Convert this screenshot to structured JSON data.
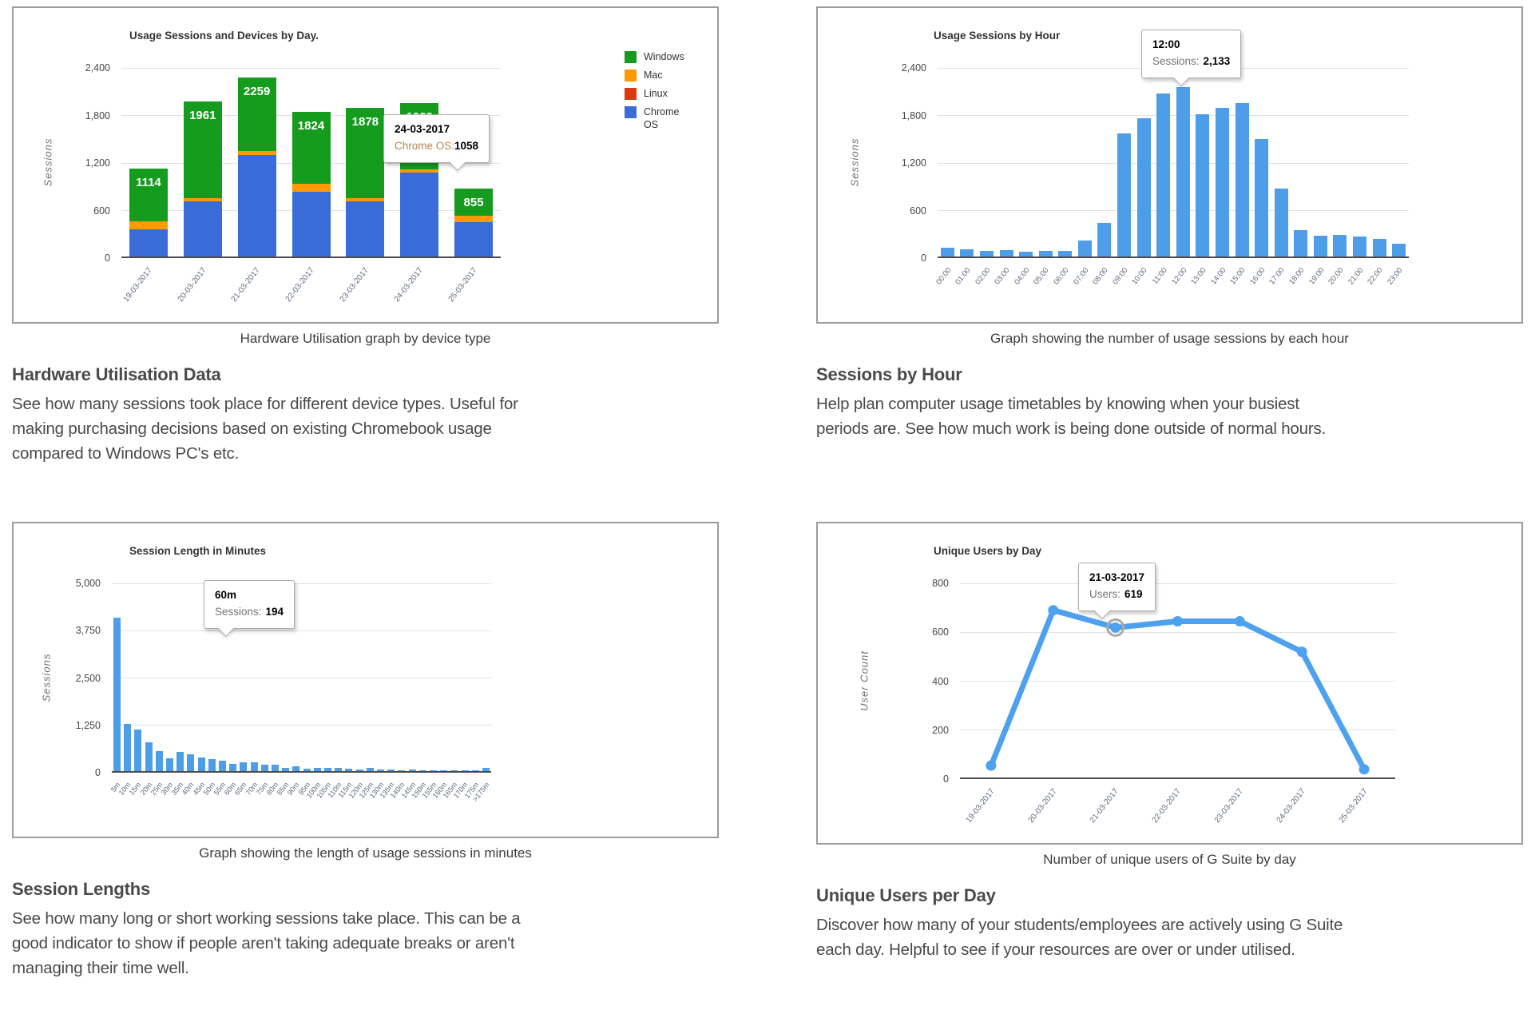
{
  "colors": {
    "windows_green": "#159b1e",
    "mac_orange": "#ff9900",
    "linux_red": "#dc3912",
    "chrome_os_blue": "#3a6cd9",
    "bar_blue": "#4d9de9",
    "line_blue": "#4da1ee",
    "box_border": "#9c9c9c",
    "text": "#4a4a4a"
  },
  "panels": {
    "hardware": {
      "caption": "Hardware Utilisation graph by device type",
      "heading": "Hardware Utilisation Data",
      "description_lines": [
        "See how many sessions took place for different device types. Useful for",
        "making purchasing decisions based on existing Chromebook usage",
        "compared to Windows PC's etc."
      ],
      "legend": [
        {
          "label": "Windows",
          "color": "#159b1e"
        },
        {
          "label": "Mac",
          "color": "#ff9900"
        },
        {
          "label": "Linux",
          "color": "#dc3912"
        },
        {
          "label": "Chrome OS",
          "color": "#3a6cd9"
        }
      ],
      "tooltip": {
        "title": "24-03-2017",
        "label": "Chrome OS:",
        "value": "1058"
      }
    },
    "hourly": {
      "caption": "Graph showing the number of usage sessions by each hour",
      "heading": "Sessions by Hour",
      "description_lines": [
        "Help plan computer usage timetables by knowing when your busiest",
        "periods are. See how much work is being done outside of normal hours."
      ],
      "tooltip": {
        "title": "12:00",
        "label": "Sessions:",
        "value": "2,133"
      }
    },
    "session_length": {
      "caption": "Graph showing the length of usage sessions in minutes",
      "heading": "Session Lengths",
      "description_lines": [
        "See how many long or short working sessions take place. This can be a",
        "good indicator to show if people aren't taking adequate breaks or aren't",
        "managing their time well."
      ],
      "tooltip": {
        "title": "60m",
        "label": "Sessions:",
        "value": "194"
      }
    },
    "unique_users": {
      "caption": "Number of unique users of G Suite by day",
      "heading": "Unique Users per Day",
      "description_lines": [
        "Discover how many of your students/employees are actively using G Suite",
        "each day. Helpful to see if your resources are over or under utilised."
      ],
      "tooltip": {
        "title": "21-03-2017",
        "label": "Users:",
        "value": "619"
      }
    }
  },
  "chart_data": [
    {
      "id": "hardware-utilisation",
      "type": "bar",
      "stacked": true,
      "title": "Usage Sessions and Devices by Day.",
      "ylabel": "Sessions",
      "ylim": [
        0,
        2400
      ],
      "yticks": [
        0,
        600,
        1200,
        1800,
        2400
      ],
      "ytick_labels": [
        "0",
        "600",
        "1,200",
        "1,800",
        "2,400"
      ],
      "grid": true,
      "legend_position": "right",
      "categories": [
        "19-03-2017",
        "20-03-2017",
        "21-03-2017",
        "22-03-2017",
        "23-03-2017",
        "24-03-2017",
        "25-03-2017"
      ],
      "series": [
        {
          "name": "Chrome OS",
          "color": "#3a6cd9",
          "values": [
            345,
            695,
            1278,
            819,
            700,
            1058,
            430
          ]
        },
        {
          "name": "Mac",
          "color": "#ff9900",
          "values": [
            95,
            45,
            52,
            99,
            40,
            42,
            80
          ]
        },
        {
          "name": "Linux",
          "color": "#dc3912",
          "values": [
            0,
            0,
            0,
            0,
            0,
            0,
            0
          ]
        },
        {
          "name": "Windows",
          "color": "#159b1e",
          "values": [
            674,
            1221,
            929,
            906,
            1138,
            832,
            345
          ]
        }
      ],
      "totals": [
        1114,
        1961,
        2259,
        1824,
        1878,
        1932,
        855
      ]
    },
    {
      "id": "sessions-by-hour",
      "type": "bar",
      "stacked": false,
      "title": "Usage Sessions by Hour",
      "ylabel": "Sessions",
      "ylim": [
        0,
        2400
      ],
      "yticks": [
        0,
        600,
        1200,
        1800,
        2400
      ],
      "ytick_labels": [
        "0",
        "600",
        "1,200",
        "1,800",
        "2,400"
      ],
      "grid": true,
      "bar_color": "#4d9de9",
      "categories": [
        "00:00",
        "01:00",
        "02:00",
        "03:00",
        "04:00",
        "05:00",
        "06:00",
        "07:00",
        "08:00",
        "09:00",
        "10:00",
        "11:00",
        "12:00",
        "13:00",
        "14:00",
        "15:00",
        "16:00",
        "17:00",
        "18:00",
        "19:00",
        "20:00",
        "21:00",
        "22:00",
        "23:00"
      ],
      "values": [
        110,
        87,
        73,
        77,
        60,
        73,
        73,
        200,
        427,
        1557,
        1740,
        2060,
        2133,
        1800,
        1877,
        1937,
        1487,
        857,
        337,
        267,
        277,
        257,
        217,
        163
      ]
    },
    {
      "id": "session-length",
      "type": "bar",
      "stacked": false,
      "title": "Session Length in Minutes",
      "ylabel": "Sessions",
      "ylim": [
        0,
        5000
      ],
      "yticks": [
        0,
        1250,
        2500,
        3750,
        5000
      ],
      "ytick_labels": [
        "0",
        "1,250",
        "2,500",
        "3,750",
        "5,000"
      ],
      "grid": true,
      "bar_color": "#4d9de9",
      "categories": [
        "5m",
        "10m",
        "15m",
        "20m",
        "25m",
        "30m",
        "35m",
        "40m",
        "45m",
        "50m",
        "55m",
        "60m",
        "65m",
        "70m",
        "75m",
        "80m",
        "85m",
        "90m",
        "95m",
        "100m",
        "105m",
        "110m",
        "115m",
        "120m",
        "125m",
        "130m",
        "135m",
        "140m",
        "145m",
        "150m",
        "155m",
        "160m",
        "165m",
        "170m",
        "175m",
        ">175m"
      ],
      "values": [
        4050,
        1240,
        1100,
        770,
        530,
        340,
        500,
        450,
        350,
        320,
        280,
        194,
        230,
        230,
        165,
        160,
        90,
        120,
        70,
        95,
        95,
        95,
        60,
        40,
        75,
        40,
        45,
        30,
        45,
        20,
        28,
        20,
        15,
        25,
        12,
        80
      ]
    },
    {
      "id": "unique-users",
      "type": "line",
      "title": "Unique Users by Day",
      "ylabel": "User Count",
      "ylim": [
        0,
        800
      ],
      "yticks": [
        0,
        200,
        400,
        600,
        800
      ],
      "ytick_labels": [
        "0",
        "200",
        "400",
        "600",
        "800"
      ],
      "grid": true,
      "line_color": "#4da1ee",
      "highlight_index": 2,
      "categories": [
        "19-03-2017",
        "20-03-2017",
        "21-03-2017",
        "22-03-2017",
        "23-03-2017",
        "24-03-2017",
        "25-03-2017"
      ],
      "values": [
        55,
        690,
        619,
        645,
        645,
        520,
        40
      ]
    }
  ]
}
